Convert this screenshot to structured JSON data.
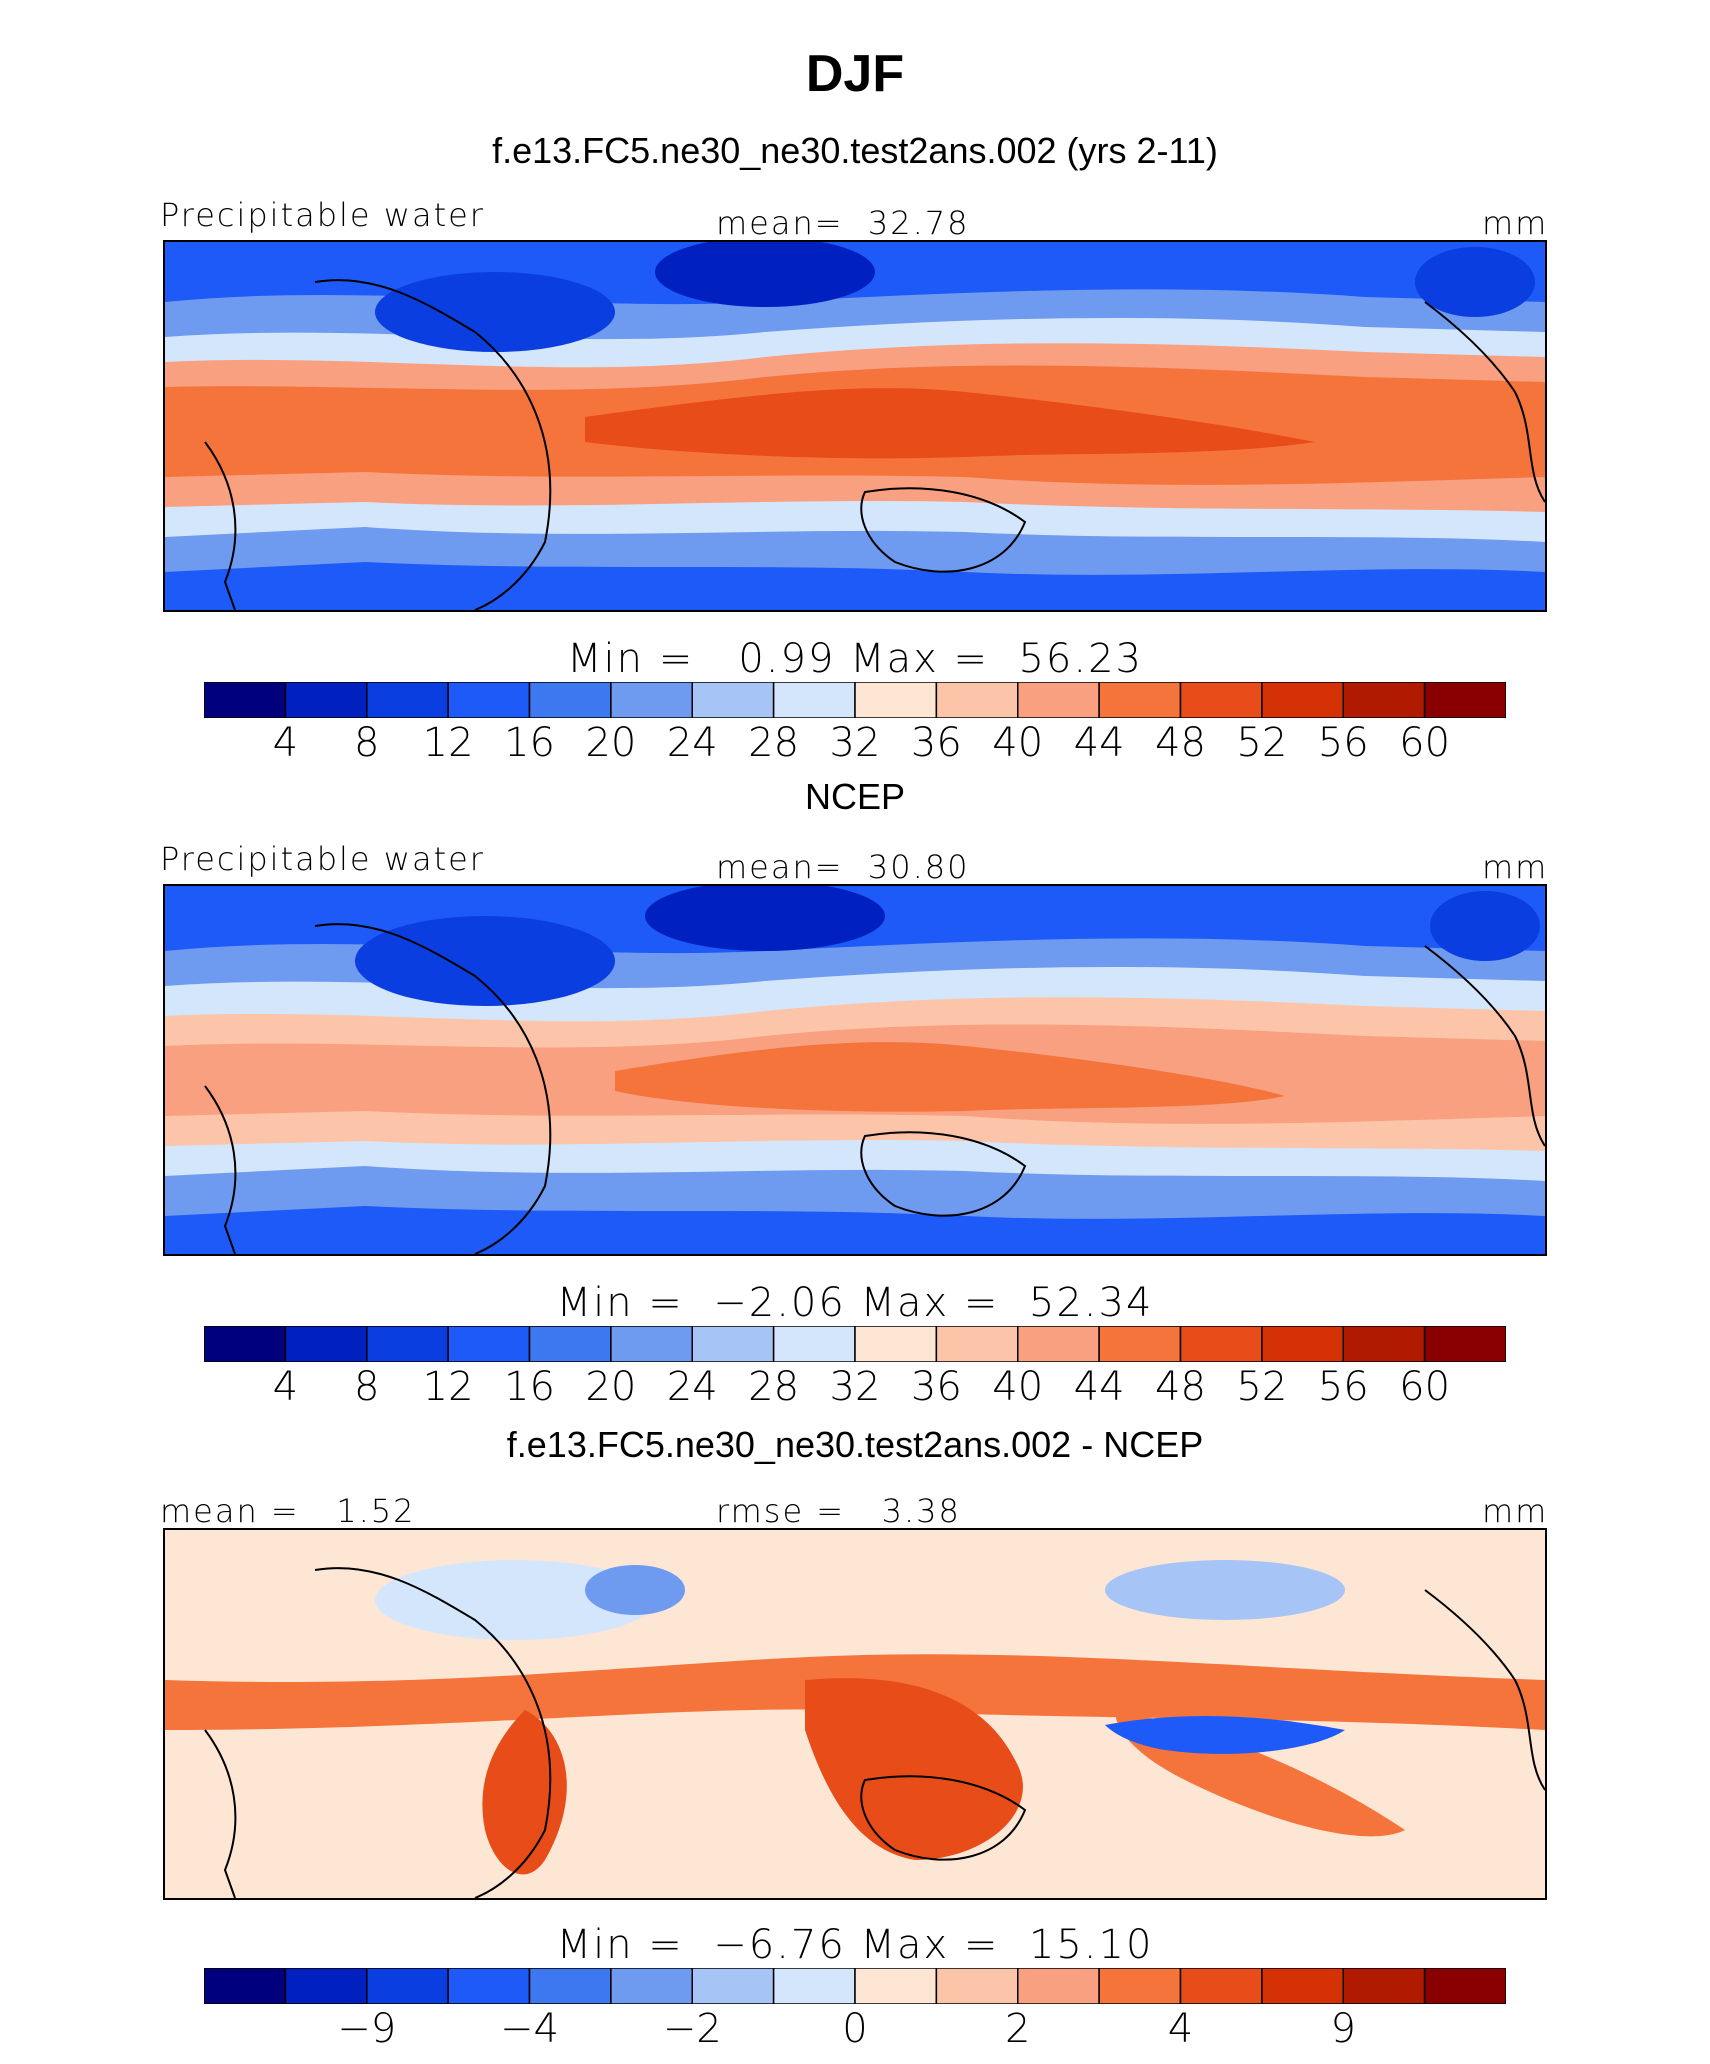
{
  "figure_title": "DJF",
  "colors": [
    "#00007f",
    "#0020c0",
    "#0a3ee0",
    "#1e5af8",
    "#3e78f0",
    "#6e9af0",
    "#a6c4f6",
    "#d4e6fc",
    "#fde6d4",
    "#fcc4a8",
    "#f8a080",
    "#f4743c",
    "#e84c18",
    "#d43204",
    "#b01a00",
    "#8a0000"
  ],
  "panels": [
    {
      "title": "f.e13.FC5.ne30_ne30.test2ans.002 (yrs 2-11)",
      "left_label": "Precipitable water",
      "center_label": "mean=  32.78",
      "right_label": "mm",
      "stats": "Min =   0.99 Max =  56.23",
      "colorbar_ticks": [
        "4",
        "8",
        "12",
        "16",
        "20",
        "24",
        "28",
        "32",
        "36",
        "40",
        "44",
        "48",
        "52",
        "56",
        "60"
      ]
    },
    {
      "title": "NCEP",
      "left_label": "Precipitable water",
      "center_label": "mean=  30.80",
      "right_label": "mm",
      "stats": "Min =  −2.06 Max =  52.34",
      "colorbar_ticks": [
        "4",
        "8",
        "12",
        "16",
        "20",
        "24",
        "28",
        "32",
        "36",
        "40",
        "44",
        "48",
        "52",
        "56",
        "60"
      ]
    },
    {
      "title": "f.e13.FC5.ne30_ne30.test2ans.002 - NCEP",
      "left_label": "mean =   1.52",
      "center_label": "rmse =   3.38",
      "right_label": "mm",
      "stats": "Min =  −6.76 Max =  15.10",
      "colorbar_ticks": [
        "−9",
        "−4",
        "−2",
        "0",
        "2",
        "4",
        "9"
      ]
    }
  ],
  "chart_data": [
    {
      "type": "heatmap",
      "title": "f.e13.FC5.ne30_ne30.test2ans.002 (yrs 2-11)",
      "variable": "Precipitable water",
      "units": "mm",
      "mean": 32.78,
      "min": 0.99,
      "max": 56.23,
      "contour_levels": [
        4,
        8,
        12,
        16,
        20,
        24,
        28,
        32,
        36,
        40,
        44,
        48,
        52,
        56,
        60
      ],
      "field": "precipitable water, DJF, model"
    },
    {
      "type": "heatmap",
      "title": "NCEP",
      "variable": "Precipitable water",
      "units": "mm",
      "mean": 30.8,
      "min": -2.06,
      "max": 52.34,
      "contour_levels": [
        4,
        8,
        12,
        16,
        20,
        24,
        28,
        32,
        36,
        40,
        44,
        48,
        52,
        56,
        60
      ],
      "field": "precipitable water, DJF, observations"
    },
    {
      "type": "heatmap",
      "title": "f.e13.FC5.ne30_ne30.test2ans.002 - NCEP",
      "units": "mm",
      "mean": 1.52,
      "rmse": 3.38,
      "min": -6.76,
      "max": 15.1,
      "contour_levels": [
        -9,
        -4,
        -2,
        0,
        2,
        4,
        9
      ],
      "field": "difference model minus observations"
    }
  ]
}
